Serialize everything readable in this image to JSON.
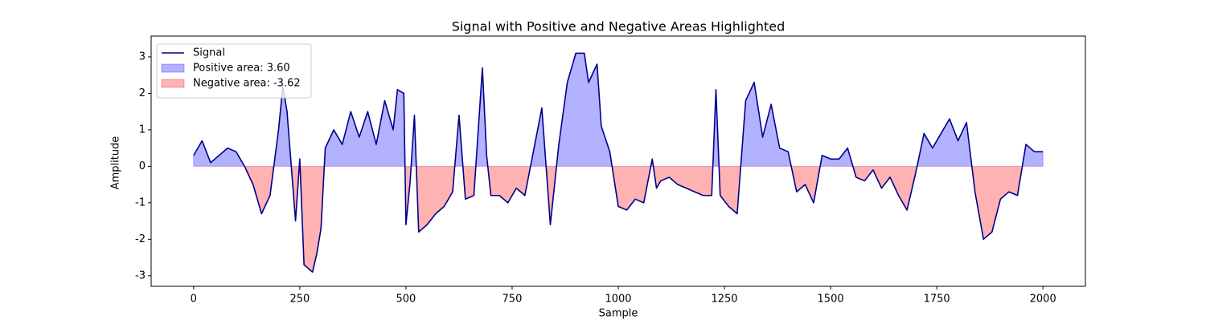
{
  "chart_data": {
    "type": "line",
    "title": "Signal with Positive and Negative Areas Highlighted",
    "xlabel": "Sample",
    "ylabel": "Amplitude",
    "x": [
      0,
      20,
      40,
      60,
      80,
      100,
      120,
      140,
      160,
      180,
      200,
      210,
      220,
      240,
      250,
      260,
      280,
      290,
      300,
      310,
      330,
      350,
      370,
      390,
      410,
      430,
      450,
      470,
      480,
      495,
      500,
      510,
      520,
      530,
      550,
      570,
      590,
      610,
      625,
      640,
      660,
      680,
      690,
      700,
      720,
      740,
      760,
      780,
      800,
      820,
      840,
      860,
      880,
      900,
      920,
      930,
      950,
      960,
      980,
      1000,
      1020,
      1040,
      1060,
      1080,
      1090,
      1100,
      1120,
      1140,
      1160,
      1180,
      1200,
      1220,
      1230,
      1240,
      1260,
      1280,
      1300,
      1320,
      1340,
      1360,
      1380,
      1400,
      1420,
      1440,
      1460,
      1480,
      1500,
      1520,
      1540,
      1560,
      1580,
      1600,
      1620,
      1640,
      1660,
      1680,
      1700,
      1720,
      1740,
      1760,
      1780,
      1800,
      1820,
      1840,
      1860,
      1880,
      1900,
      1920,
      1940,
      1960,
      1980,
      2000
    ],
    "series": [
      {
        "name": "Signal",
        "color": "#00008b",
        "values": [
          0.3,
          0.7,
          0.1,
          0.3,
          0.5,
          0.4,
          0,
          -0.5,
          -1.3,
          -0.8,
          1.0,
          2.2,
          1.5,
          -1.5,
          0.2,
          -2.7,
          -2.9,
          -2.4,
          -1.7,
          0.5,
          1.0,
          0.6,
          1.5,
          0.8,
          1.5,
          0.6,
          1.8,
          1.0,
          2.1,
          2.0,
          -1.6,
          -0.4,
          1.4,
          -1.8,
          -1.6,
          -1.3,
          -1.1,
          -0.7,
          1.4,
          -0.9,
          -0.8,
          2.7,
          0.3,
          -0.8,
          -0.8,
          -1.0,
          -0.6,
          -0.8,
          0.4,
          1.6,
          -1.6,
          0.6,
          2.3,
          3.1,
          3.1,
          2.3,
          2.8,
          1.1,
          0.4,
          -1.1,
          -1.2,
          -0.9,
          -1.0,
          0.2,
          -0.6,
          -0.4,
          -0.3,
          -0.5,
          -0.6,
          -0.7,
          -0.8,
          -0.8,
          2.1,
          -0.8,
          -1.1,
          -1.3,
          1.8,
          2.3,
          0.8,
          1.7,
          0.5,
          0.4,
          -0.7,
          -0.5,
          -1.0,
          0.3,
          0.2,
          0.2,
          0.5,
          -0.3,
          -0.4,
          -0.1,
          -0.6,
          -0.3,
          -0.8,
          -1.2,
          -0.2,
          0.9,
          0.5,
          0.9,
          1.3,
          0.7,
          1.2,
          -0.7,
          -2.0,
          -1.8,
          -0.9,
          -0.7,
          -0.8,
          0.6,
          0.4,
          0.4
        ]
      }
    ],
    "fills": [
      {
        "name": "Positive area: 3.60",
        "color": "#0000ff",
        "where": "above"
      },
      {
        "name": "Negative area: -3.62",
        "color": "#ff0000",
        "where": "below"
      }
    ],
    "xlim": [
      -100,
      2100
    ],
    "ylim": [
      -3.29,
      3.57
    ],
    "xticks": [
      0,
      250,
      500,
      750,
      1000,
      1250,
      1500,
      1750,
      2000
    ],
    "yticks": [
      -3,
      -2,
      -1,
      0,
      1,
      2,
      3
    ],
    "legend": "upper left"
  }
}
